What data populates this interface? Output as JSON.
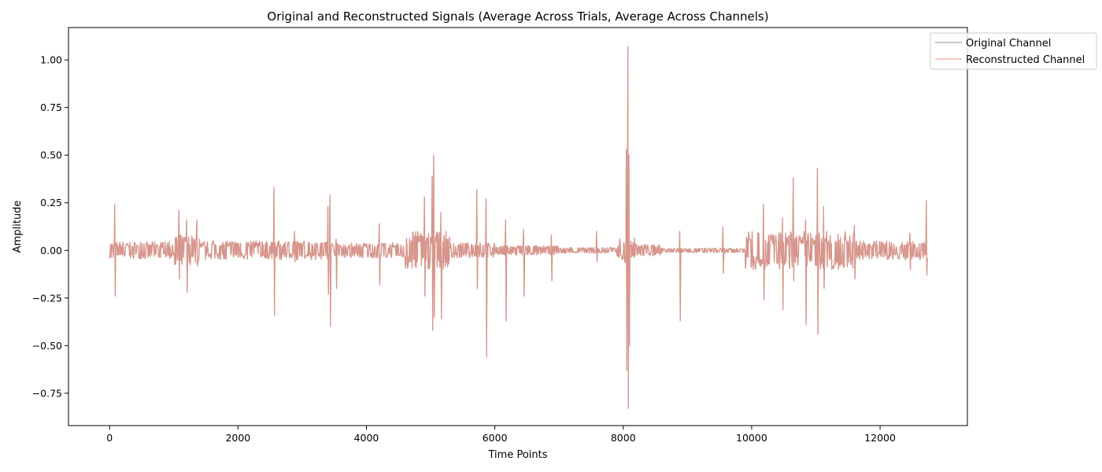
{
  "chart_data": {
    "type": "line",
    "title": "Original and Reconstructed Signals (Average Across Trials, Average Across Channels)",
    "xlabel": "Time Points",
    "ylabel": "Amplitude",
    "xlim": [
      -640,
      13360
    ],
    "ylim": [
      -0.92,
      1.17
    ],
    "xticks": [
      0,
      2000,
      4000,
      6000,
      8000,
      10000,
      12000
    ],
    "yticks": [
      -0.75,
      -0.5,
      -0.25,
      0.0,
      0.25,
      0.5,
      0.75,
      1.0
    ],
    "ytick_labels": [
      "−0.75",
      "−0.50",
      "−0.25",
      "0.00",
      "0.25",
      "0.50",
      "0.75",
      "1.00"
    ],
    "legend_position": "top-right outside",
    "n_points": 12740,
    "series": [
      {
        "name": "Original Channel",
        "color": "#808080",
        "opacity": 0.6
      },
      {
        "name": "Reconstructed Channel",
        "color": "#f08070",
        "opacity": 0.6
      }
    ],
    "envelope": [
      {
        "x": [
          0,
          1000
        ],
        "amp": 0.045
      },
      {
        "x": [
          1000,
          1400
        ],
        "amp": 0.08
      },
      {
        "x": [
          1400,
          2600
        ],
        "amp": 0.05
      },
      {
        "x": [
          2600,
          3400
        ],
        "amp": 0.05
      },
      {
        "x": [
          3400,
          4600
        ],
        "amp": 0.04
      },
      {
        "x": [
          4600,
          5300
        ],
        "amp": 0.1
      },
      {
        "x": [
          5300,
          6000
        ],
        "amp": 0.04
      },
      {
        "x": [
          6000,
          7000
        ],
        "amp": 0.025
      },
      {
        "x": [
          7000,
          7900
        ],
        "amp": 0.015
      },
      {
        "x": [
          7900,
          8200
        ],
        "amp": 0.07
      },
      {
        "x": [
          8200,
          8600
        ],
        "amp": 0.03
      },
      {
        "x": [
          8600,
          9900
        ],
        "amp": 0.012
      },
      {
        "x": [
          9900,
          11600
        ],
        "amp": 0.1
      },
      {
        "x": [
          11600,
          12740
        ],
        "amp": 0.05
      }
    ],
    "spikes": [
      {
        "x": 80,
        "high": 0.24,
        "low": -0.24
      },
      {
        "x": 1080,
        "high": 0.21,
        "low": -0.15
      },
      {
        "x": 1200,
        "high": 0.16,
        "low": -0.22
      },
      {
        "x": 1360,
        "high": 0.16,
        "low": -0.08
      },
      {
        "x": 2560,
        "high": 0.33,
        "low": -0.34
      },
      {
        "x": 2880,
        "high": 0.1,
        "low": -0.06
      },
      {
        "x": 3400,
        "high": 0.23,
        "low": -0.23
      },
      {
        "x": 3430,
        "high": 0.29,
        "low": -0.4
      },
      {
        "x": 3530,
        "high": 0.06,
        "low": -0.2
      },
      {
        "x": 4200,
        "high": 0.14,
        "low": -0.18
      },
      {
        "x": 4900,
        "high": 0.28,
        "low": -0.24
      },
      {
        "x": 5020,
        "high": 0.39,
        "low": -0.42
      },
      {
        "x": 5050,
        "high": 0.5,
        "low": -0.35
      },
      {
        "x": 5160,
        "high": 0.2,
        "low": -0.36
      },
      {
        "x": 5720,
        "high": 0.32,
        "low": -0.2
      },
      {
        "x": 5860,
        "high": 0.27,
        "low": -0.56
      },
      {
        "x": 6170,
        "high": 0.16,
        "low": -0.37
      },
      {
        "x": 6450,
        "high": 0.11,
        "low": -0.24
      },
      {
        "x": 6880,
        "high": 0.08,
        "low": -0.16
      },
      {
        "x": 7580,
        "high": 0.1,
        "low": -0.06
      },
      {
        "x": 8050,
        "high": 0.53,
        "low": -0.63
      },
      {
        "x": 8070,
        "high": 1.07,
        "low": -0.83
      },
      {
        "x": 8090,
        "high": 0.5,
        "low": -0.5
      },
      {
        "x": 8880,
        "high": 0.1,
        "low": -0.37
      },
      {
        "x": 9550,
        "high": 0.12,
        "low": -0.12
      },
      {
        "x": 10180,
        "high": 0.24,
        "low": -0.26
      },
      {
        "x": 10480,
        "high": 0.17,
        "low": -0.31
      },
      {
        "x": 10650,
        "high": 0.38,
        "low": -0.16
      },
      {
        "x": 10840,
        "high": 0.16,
        "low": -0.39
      },
      {
        "x": 11020,
        "high": 0.43,
        "low": -0.44
      },
      {
        "x": 11120,
        "high": 0.23,
        "low": -0.2
      },
      {
        "x": 11600,
        "high": 0.13,
        "low": -0.15
      },
      {
        "x": 12460,
        "high": 0.09,
        "low": -0.1
      },
      {
        "x": 12720,
        "high": 0.26,
        "low": -0.13
      }
    ]
  }
}
